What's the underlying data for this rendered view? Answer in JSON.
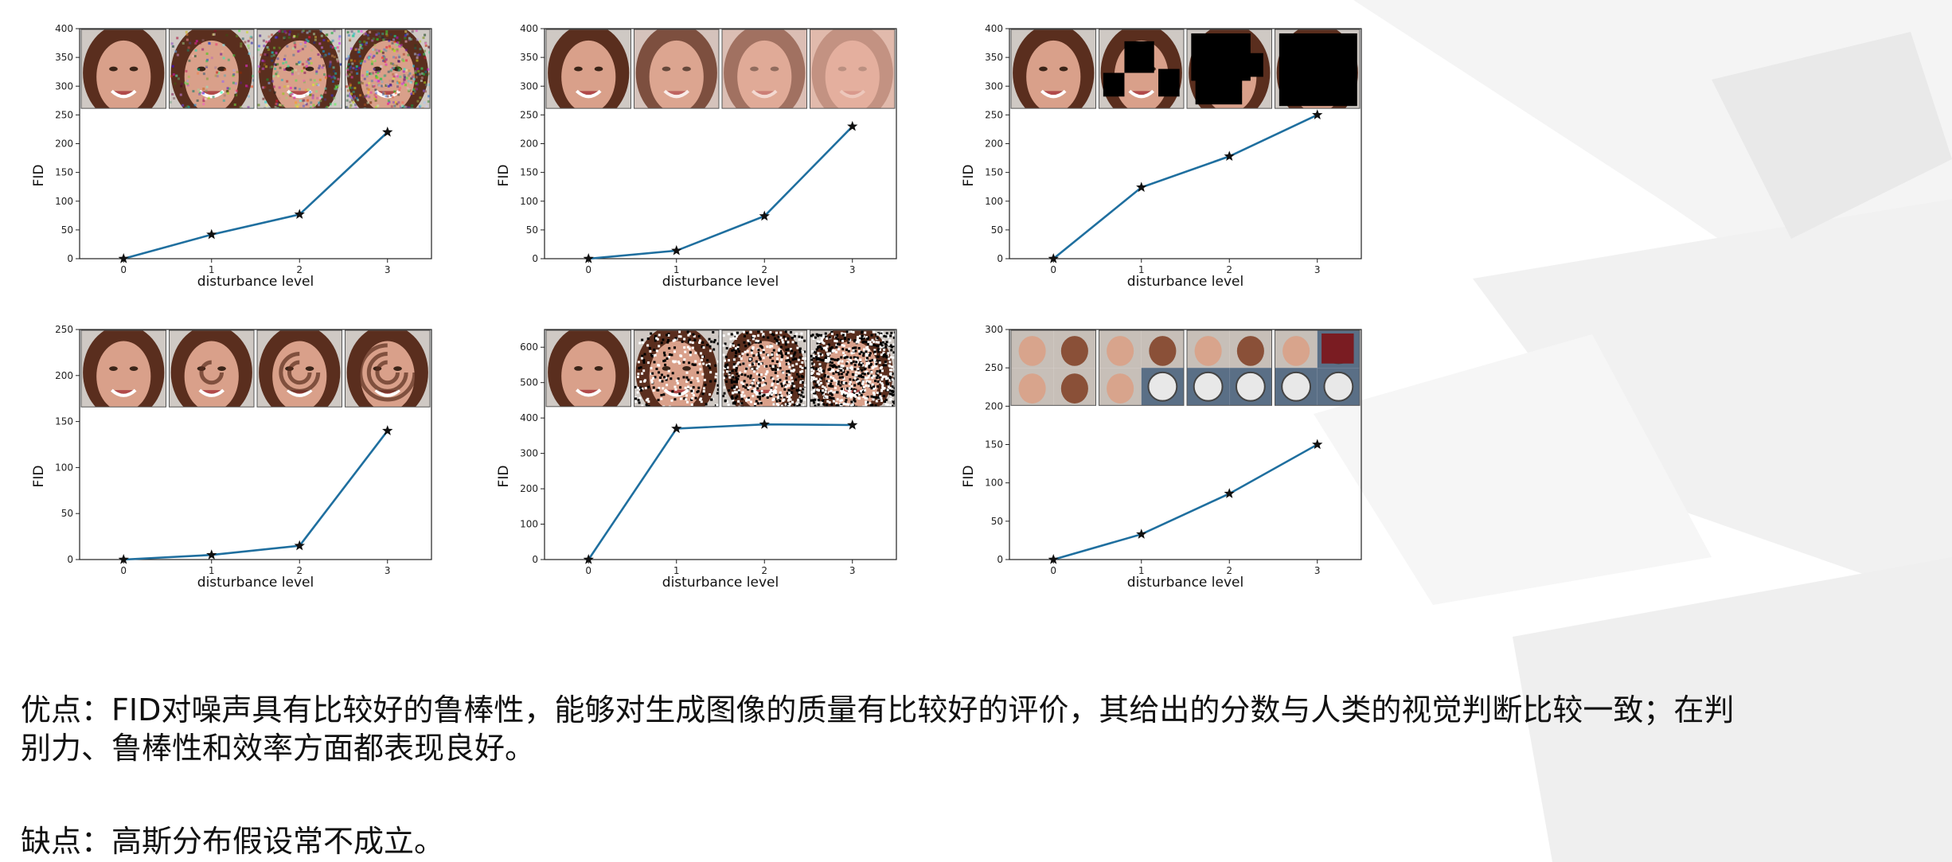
{
  "chart_data": [
    {
      "type": "line",
      "x": [
        0,
        1,
        2,
        3
      ],
      "values": [
        0,
        42,
        77,
        220
      ],
      "xlabel": "disturbance level",
      "ylabel": "FID",
      "ylim": [
        0,
        400
      ],
      "yticks": [
        0,
        50,
        100,
        150,
        200,
        250,
        300,
        350,
        400
      ],
      "xticks": [
        "0",
        "1",
        "2",
        "3"
      ],
      "marker": "star",
      "color": "#1f6f9f",
      "thumb_style": "noise",
      "thumb_band": [
        260,
        400
      ]
    },
    {
      "type": "line",
      "x": [
        0,
        1,
        2,
        3
      ],
      "values": [
        0,
        14,
        74,
        230
      ],
      "xlabel": "disturbance level",
      "ylabel": "FID",
      "ylim": [
        0,
        400
      ],
      "yticks": [
        0,
        50,
        100,
        150,
        200,
        250,
        300,
        350,
        400
      ],
      "xticks": [
        "0",
        "1",
        "2",
        "3"
      ],
      "marker": "star",
      "color": "#1f6f9f",
      "thumb_style": "blur",
      "thumb_band": [
        260,
        400
      ]
    },
    {
      "type": "line",
      "x": [
        0,
        1,
        2,
        3
      ],
      "values": [
        0,
        124,
        178,
        250
      ],
      "xlabel": "disturbance level",
      "ylabel": "FID",
      "ylim": [
        0,
        400
      ],
      "yticks": [
        0,
        50,
        100,
        150,
        200,
        250,
        300,
        350,
        400
      ],
      "xticks": [
        "0",
        "1",
        "2",
        "3"
      ],
      "marker": "star",
      "color": "#1f6f9f",
      "thumb_style": "blackrect",
      "thumb_band": [
        260,
        400
      ]
    },
    {
      "type": "line",
      "x": [
        0,
        1,
        2,
        3
      ],
      "values": [
        0,
        5,
        15,
        140
      ],
      "xlabel": "disturbance level",
      "ylabel": "FID",
      "ylim": [
        0,
        250
      ],
      "yticks": [
        0,
        50,
        100,
        150,
        200,
        250
      ],
      "xticks": [
        "0",
        "1",
        "2",
        "3"
      ],
      "marker": "star",
      "color": "#1f6f9f",
      "thumb_style": "swirl",
      "thumb_band": [
        165,
        250
      ]
    },
    {
      "type": "line",
      "x": [
        0,
        1,
        2,
        3
      ],
      "values": [
        0,
        370,
        382,
        380
      ],
      "xlabel": "disturbance level",
      "ylabel": "FID",
      "ylim": [
        0,
        650
      ],
      "yticks": [
        0,
        100,
        200,
        300,
        400,
        500,
        600
      ],
      "xticks": [
        "0",
        "1",
        "2",
        "3"
      ],
      "marker": "star",
      "color": "#1f6f9f",
      "thumb_style": "saltpepper",
      "thumb_band": [
        430,
        650
      ]
    },
    {
      "type": "line",
      "x": [
        0,
        1,
        2,
        3
      ],
      "values": [
        0,
        33,
        86,
        150
      ],
      "xlabel": "disturbance level",
      "ylabel": "FID",
      "ylim": [
        0,
        300
      ],
      "yticks": [
        0,
        50,
        100,
        150,
        200,
        250,
        300
      ],
      "xticks": [
        "0",
        "1",
        "2",
        "3"
      ],
      "marker": "star",
      "color": "#1f6f9f",
      "thumb_style": "contamination",
      "thumb_band": [
        200,
        300
      ]
    }
  ],
  "text": {
    "pros_line1": "优点：FID对噪声具有比较好的鲁棒性，能够对生成图像的质量有比较好的评价，其给出的分数与人类的视觉判断比较一致；在判",
    "pros_line2": "别力、鲁棒性和效率方面都表现良好。",
    "cons": "缺点：高斯分布假设常不成立。"
  },
  "colors": {
    "line": "#1f6f9f",
    "marker": "#111111",
    "skin": "#d9a08a",
    "hair": "#5a2e1e"
  }
}
